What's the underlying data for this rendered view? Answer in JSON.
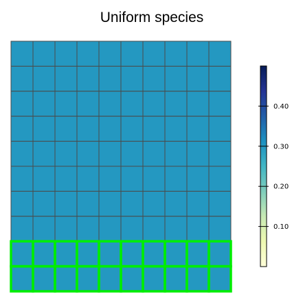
{
  "chart_data": {
    "type": "heatmap",
    "title": "Uniform species",
    "grid": {
      "rows": 10,
      "cols": 10,
      "values": [
        [
          0.3,
          0.3,
          0.3,
          0.3,
          0.3,
          0.3,
          0.3,
          0.3,
          0.3,
          0.3
        ],
        [
          0.3,
          0.3,
          0.3,
          0.3,
          0.3,
          0.3,
          0.3,
          0.3,
          0.3,
          0.3
        ],
        [
          0.3,
          0.3,
          0.3,
          0.3,
          0.3,
          0.3,
          0.3,
          0.3,
          0.3,
          0.3
        ],
        [
          0.3,
          0.3,
          0.3,
          0.3,
          0.3,
          0.3,
          0.3,
          0.3,
          0.3,
          0.3
        ],
        [
          0.3,
          0.3,
          0.3,
          0.3,
          0.3,
          0.3,
          0.3,
          0.3,
          0.3,
          0.3
        ],
        [
          0.3,
          0.3,
          0.3,
          0.3,
          0.3,
          0.3,
          0.3,
          0.3,
          0.3,
          0.3
        ],
        [
          0.3,
          0.3,
          0.3,
          0.3,
          0.3,
          0.3,
          0.3,
          0.3,
          0.3,
          0.3
        ],
        [
          0.3,
          0.3,
          0.3,
          0.3,
          0.3,
          0.3,
          0.3,
          0.3,
          0.3,
          0.3
        ],
        [
          0.3,
          0.3,
          0.3,
          0.3,
          0.3,
          0.3,
          0.3,
          0.3,
          0.3,
          0.3
        ],
        [
          0.3,
          0.3,
          0.3,
          0.3,
          0.3,
          0.3,
          0.3,
          0.3,
          0.3,
          0.3
        ]
      ],
      "highlighted_rows": [
        8,
        9
      ]
    },
    "colorbar": {
      "range": [
        0.0,
        0.5
      ],
      "ticks": [
        0.1,
        0.2,
        0.3,
        0.4
      ],
      "tick_labels": [
        "0.10",
        "0.20",
        "0.30",
        "0.40"
      ],
      "colormap": "YlGnBu",
      "placement": "right"
    },
    "colors": {
      "cell_border": "#4a4a4a",
      "highlight_border": "#00ee00",
      "colormap_stops": [
        "#ffffd9",
        "#edf8b1",
        "#c7e9b4",
        "#7fcdbb",
        "#41b6c4",
        "#1d91c0",
        "#225ea8",
        "#253494",
        "#081d58"
      ]
    }
  }
}
